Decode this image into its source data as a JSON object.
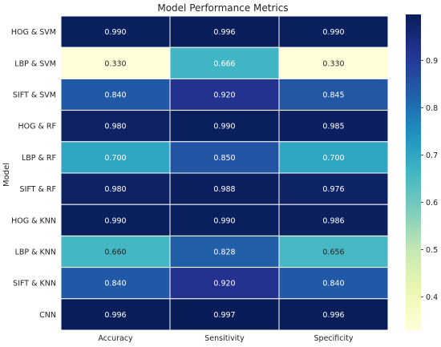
{
  "chart_data": {
    "type": "heatmap",
    "title": "Model Performance Metrics",
    "ylabel": "Model",
    "xlabel": "",
    "columns": [
      "Accuracy",
      "Sensitivity",
      "Specificity"
    ],
    "rows": [
      "HOG & SVM",
      "LBP & SVM",
      "SIFT & SVM",
      "HOG & RF",
      "LBP & RF",
      "SIFT & RF",
      "HOG & KNN",
      "LBP & KNN",
      "SIFT & KNN",
      "CNN"
    ],
    "values": [
      [
        0.99,
        0.996,
        0.99
      ],
      [
        0.33,
        0.666,
        0.33
      ],
      [
        0.84,
        0.92,
        0.845
      ],
      [
        0.98,
        0.99,
        0.985
      ],
      [
        0.7,
        0.85,
        0.7
      ],
      [
        0.98,
        0.988,
        0.976
      ],
      [
        0.99,
        0.99,
        0.986
      ],
      [
        0.66,
        0.828,
        0.656
      ],
      [
        0.84,
        0.92,
        0.84
      ],
      [
        0.996,
        0.997,
        0.996
      ]
    ],
    "colormap": "YlGnBu",
    "vmin": 0.33,
    "vmax": 0.997,
    "colorbar_ticks": [
      0.4,
      0.5,
      0.6,
      0.7,
      0.8,
      0.9
    ],
    "annotation_format": "3 decimals",
    "cell_border_color": "#ffffff",
    "grid": false,
    "legend": "colorbar-right"
  }
}
